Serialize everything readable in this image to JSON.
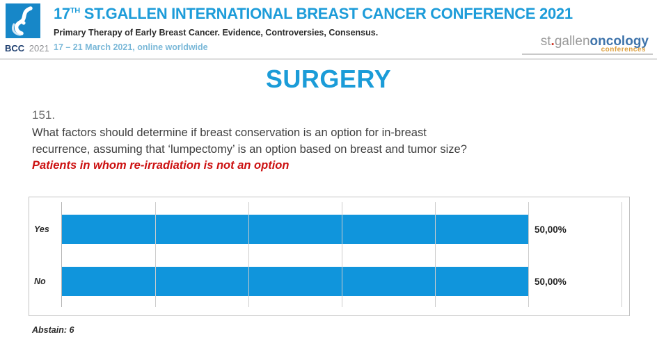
{
  "header": {
    "badge": {
      "bcc": "BCC",
      "year": "2021"
    },
    "title_prefix": "17",
    "title_superscript": "TH",
    "title_rest": " ST.GALLEN INTERNATIONAL BREAST CANCER CONFERENCE 2021",
    "subtitle": "Primary Therapy of Early Breast Cancer. Evidence, Controversies, Consensus.",
    "date_line": "17 – 21 March 2021, online worldwide",
    "right_logo": {
      "st": "st",
      "dot": ".",
      "gallen": "gallen",
      "oncology": "oncology",
      "conferences": "conferences"
    }
  },
  "slide": {
    "section_title": "SURGERY",
    "question_number": "151.",
    "question_text": "What factors should determine if breast conservation is an option for in-breast recurrence, assuming that ‘lumpectomy’ is an option based on breast and tumor size?",
    "question_subnote": "Patients in whom re-irradiation is not an option",
    "abstain_note": "Abstain: 6"
  },
  "chart_data": {
    "type": "bar",
    "orientation": "horizontal",
    "title": "",
    "categories": [
      "Yes",
      "No"
    ],
    "values": [
      50,
      50
    ],
    "value_labels": [
      "50,00%",
      "50,00%"
    ],
    "xlim": [
      0,
      60
    ],
    "gridline_step": 10,
    "grid": true,
    "legend_position": "none",
    "bar_color": "#1095dc"
  },
  "colors": {
    "accent_blue": "#1d9cd9",
    "date_blue": "#7ab8d8",
    "section_title_blue": "#1b9cd8",
    "note_red": "#cc1111",
    "bar_blue": "#1095dc",
    "badge_blue": "#1787c8",
    "logo_gray": "#9a9a9a",
    "logo_oncology_blue": "#3f74ab",
    "logo_conferences_orange": "#dd9f3d"
  }
}
